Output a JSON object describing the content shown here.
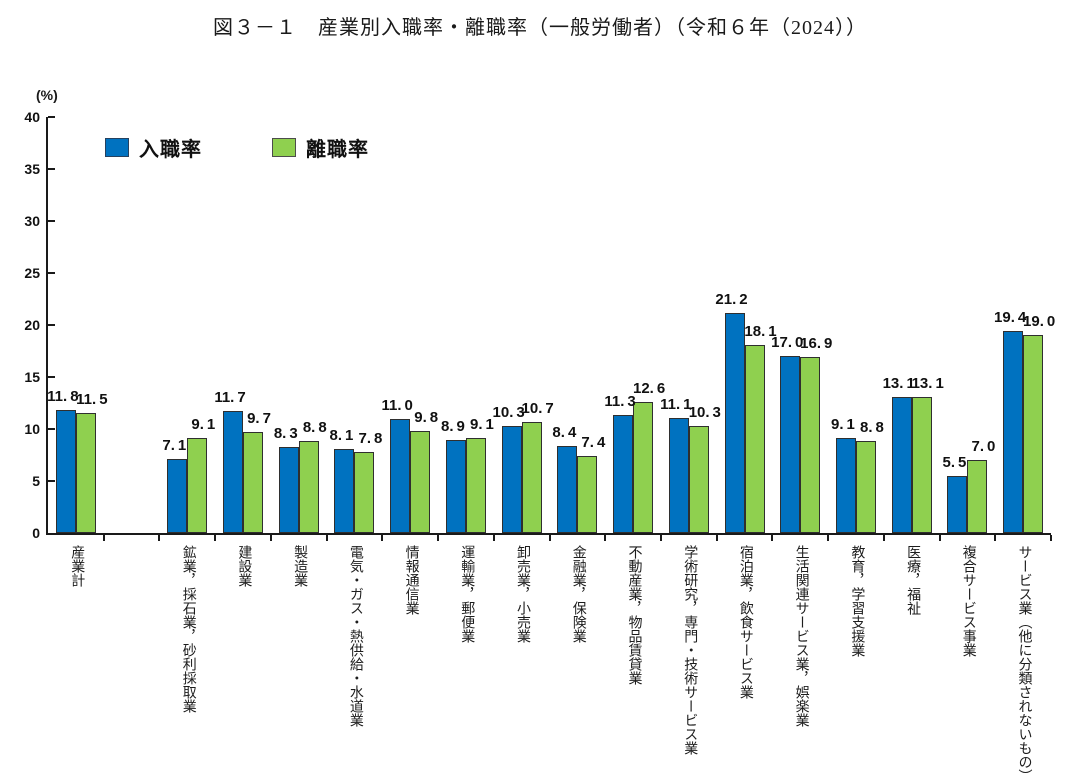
{
  "title": "図３－１　産業別入職率・離職率（一般労働者）（令和６年（2024））",
  "unit_label": "(%)",
  "legend": {
    "items": [
      {
        "label": "入職率",
        "color": "#0072C0"
      },
      {
        "label": "離職率",
        "color": "#8FD04F"
      }
    ]
  },
  "chart_data": {
    "type": "bar",
    "title": "図３－１　産業別入職率・離職率（一般労働者）（令和６年（2024））",
    "ylabel": "(%)",
    "xlabel": "",
    "ylim": [
      0,
      40
    ],
    "ytick_step": 5,
    "grid": false,
    "legend_position": "top-left-inside",
    "gap_after_first_category": true,
    "value_label_decimal_space": true,
    "categories": [
      "産業計",
      "鉱業，採石業，砂利採取業",
      "建設業",
      "製造業",
      "電気・ガス・熱供給・水道業",
      "情報通信業",
      "運輸業，郵便業",
      "卸売業，小売業",
      "金融業，保険業",
      "不動産業，物品賃貸業",
      "学術研究，専門・技術サービス業",
      "宿泊業，飲食サービス業",
      "生活関連サービス業，娯楽業",
      "教育，学習支援業",
      "医療，福祉",
      "複合サービス事業",
      "サービス業（他に分類されないもの）"
    ],
    "series": [
      {
        "name": "入職率",
        "color": "#0072C0",
        "values": [
          11.8,
          7.1,
          11.7,
          8.3,
          8.1,
          11.0,
          8.9,
          10.3,
          8.4,
          11.3,
          11.1,
          21.2,
          17.0,
          9.1,
          13.1,
          5.5,
          19.4
        ]
      },
      {
        "name": "離職率",
        "color": "#8FD04F",
        "values": [
          11.5,
          9.1,
          9.7,
          8.8,
          7.8,
          9.8,
          9.1,
          10.7,
          7.4,
          12.6,
          10.3,
          18.1,
          16.9,
          8.8,
          13.1,
          7.0,
          19.0
        ]
      }
    ]
  }
}
